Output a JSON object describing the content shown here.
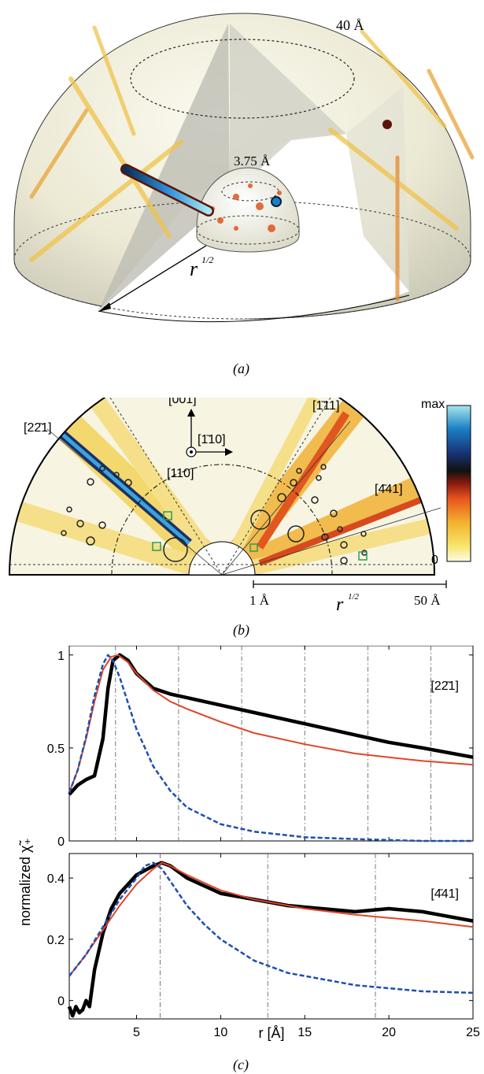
{
  "panel_a": {
    "caption": "(a)",
    "outer_label": "40 Å",
    "inner_label": "3.75 Å",
    "radius_label": "r",
    "radius_exponent": "1/2"
  },
  "panel_b": {
    "caption": "(b)",
    "dir_221": "[22̄1]",
    "dir_111": "[1̄11]",
    "dir_441": "[4̄41]",
    "axis_001": "[001]",
    "axis_110bar": "[1̄10]",
    "axis_110": "[110]",
    "scale_min": "1 Å",
    "scale_max": "50 Å",
    "scale_var": "r",
    "scale_exp": "1/2",
    "colorbar_max": "max",
    "colorbar_min": "0",
    "colors": [
      "#fdfbe6",
      "#f7e56a",
      "#f2b22d",
      "#e8561e",
      "#8a1b10",
      "#111111",
      "#19357a",
      "#1b7fc4",
      "#a8e7ee"
    ]
  },
  "panel_c": {
    "caption": "(c)",
    "ylabel": "normalized χ̃₊",
    "xlabel": "r [Å]",
    "xticks": [
      "5",
      "10",
      "15",
      "20",
      "25"
    ]
  },
  "chart_data": [
    {
      "type": "line",
      "annotation": "[22̄1]",
      "xlim": [
        1,
        25
      ],
      "ylim": [
        0,
        1.05
      ],
      "yticks": [
        "0",
        "0.5",
        "1"
      ],
      "grid": false,
      "vlines": [
        3.75,
        7.5,
        11.25,
        15,
        18.75,
        22.5
      ],
      "series": [
        {
          "color": "#000000",
          "style": "solid-thick",
          "x": [
            1,
            1.5,
            2,
            2.5,
            3,
            3.3,
            3.6,
            4,
            4.5,
            5,
            6,
            7,
            8,
            10,
            12,
            15,
            18,
            20,
            22,
            25
          ],
          "y": [
            0.25,
            0.3,
            0.33,
            0.35,
            0.55,
            0.82,
            0.97,
            1.0,
            0.97,
            0.9,
            0.82,
            0.79,
            0.77,
            0.73,
            0.69,
            0.63,
            0.57,
            0.53,
            0.5,
            0.45
          ]
        },
        {
          "color": "#e0452a",
          "style": "solid",
          "x": [
            1,
            1.5,
            2,
            2.5,
            3,
            3.5,
            3.9,
            4.5,
            5,
            6,
            7,
            8,
            10,
            12,
            15,
            18,
            20,
            22,
            25
          ],
          "y": [
            0.26,
            0.38,
            0.55,
            0.75,
            0.92,
            0.99,
            1.0,
            0.96,
            0.9,
            0.81,
            0.75,
            0.71,
            0.64,
            0.58,
            0.52,
            0.47,
            0.45,
            0.43,
            0.41
          ]
        },
        {
          "color": "#1d4fb0",
          "style": "dashed",
          "x": [
            1,
            1.5,
            2,
            2.5,
            3,
            3.3,
            3.6,
            4,
            4.5,
            5,
            6,
            7,
            8,
            10,
            12,
            15,
            18,
            20,
            22,
            25
          ],
          "y": [
            0.26,
            0.38,
            0.56,
            0.78,
            0.95,
            1.0,
            0.97,
            0.88,
            0.74,
            0.6,
            0.4,
            0.27,
            0.18,
            0.09,
            0.05,
            0.02,
            0.01,
            0.005,
            0.0,
            0.0
          ]
        }
      ]
    },
    {
      "type": "line",
      "annotation": "[4̄41]",
      "xlim": [
        1,
        25
      ],
      "ylim": [
        -0.06,
        0.48
      ],
      "yticks": [
        "0",
        "0.2",
        "0.4"
      ],
      "grid": false,
      "vlines": [
        6.4,
        12.8,
        19.2
      ],
      "series": [
        {
          "color": "#000000",
          "style": "solid-thick",
          "x": [
            1,
            1.2,
            1.4,
            1.6,
            1.8,
            2,
            2.2,
            2.5,
            3,
            3.5,
            4,
            5,
            6,
            6.5,
            7,
            8,
            10,
            12,
            14,
            16,
            18,
            20,
            22,
            23,
            25
          ],
          "y": [
            -0.02,
            -0.05,
            -0.02,
            -0.04,
            -0.03,
            0.0,
            -0.02,
            0.1,
            0.22,
            0.3,
            0.35,
            0.41,
            0.44,
            0.45,
            0.44,
            0.4,
            0.35,
            0.33,
            0.31,
            0.3,
            0.29,
            0.3,
            0.29,
            0.28,
            0.26
          ]
        },
        {
          "color": "#e0452a",
          "style": "solid",
          "x": [
            1,
            2,
            3,
            4,
            5,
            6,
            6.5,
            7,
            8,
            10,
            12,
            15,
            18,
            20,
            22,
            25
          ],
          "y": [
            0.08,
            0.15,
            0.23,
            0.31,
            0.38,
            0.43,
            0.45,
            0.44,
            0.41,
            0.36,
            0.33,
            0.3,
            0.28,
            0.27,
            0.26,
            0.24
          ]
        },
        {
          "color": "#1d4fb0",
          "style": "dashed",
          "x": [
            1,
            2,
            3,
            4,
            5,
            5.5,
            6,
            6.5,
            7,
            8,
            9,
            10,
            12,
            14,
            16,
            18,
            20,
            22,
            25
          ],
          "y": [
            0.08,
            0.15,
            0.24,
            0.33,
            0.4,
            0.44,
            0.45,
            0.43,
            0.39,
            0.31,
            0.25,
            0.2,
            0.13,
            0.09,
            0.07,
            0.05,
            0.04,
            0.03,
            0.025
          ]
        }
      ]
    }
  ]
}
